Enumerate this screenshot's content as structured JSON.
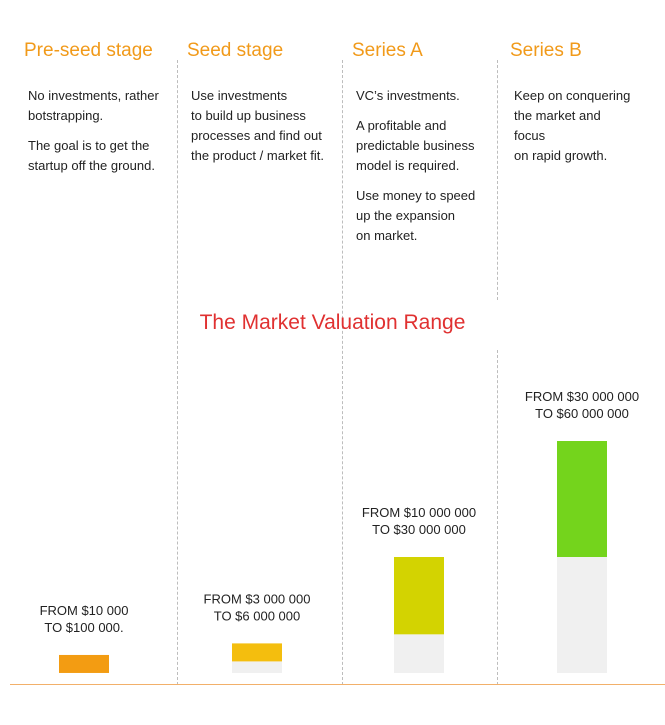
{
  "stages": [
    {
      "title": "Pre-seed stage",
      "paragraphs": [
        "No investments, rather\nbotstrapping.",
        "The goal is to get the\nstartup off the ground."
      ]
    },
    {
      "title": "Seed stage",
      "paragraphs": [
        "Use investments\nto build up business\nprocesses and find out\nthe product / market fit."
      ]
    },
    {
      "title": "Series A",
      "paragraphs": [
        "VC’s investments.",
        "A profitable and\npredictable business\nmodel is required.",
        "Use money to speed\nup the expansion\non market."
      ]
    },
    {
      "title": "Series B",
      "paragraphs": [
        "Keep on conquering\nthe market and\nfocus\non rapid growth."
      ]
    }
  ],
  "chart_data": {
    "type": "bar",
    "title": "The Market Valuation Range",
    "categories": [
      "Pre-seed stage",
      "Seed stage",
      "Series A",
      "Series B"
    ],
    "series": [
      {
        "name": "from",
        "values": [
          10000,
          3000000,
          10000000,
          30000000
        ]
      },
      {
        "name": "to",
        "values": [
          100000,
          6000000,
          30000000,
          60000000
        ]
      }
    ],
    "labels": [
      [
        "FROM $10 000",
        "TO $100 000."
      ],
      [
        "FROM $3 000 000",
        "TO $6 000 000"
      ],
      [
        "FROM $10 000 000",
        "TO $30 000 000"
      ],
      [
        "FROM $30 000 000",
        "TO $60 000 000"
      ]
    ],
    "ylim": [
      0,
      75000000
    ],
    "colors": [
      "#f39c12",
      "#f4be0e",
      "#d3d301",
      "#74d41c"
    ],
    "base_color": "#f0f0f0"
  }
}
